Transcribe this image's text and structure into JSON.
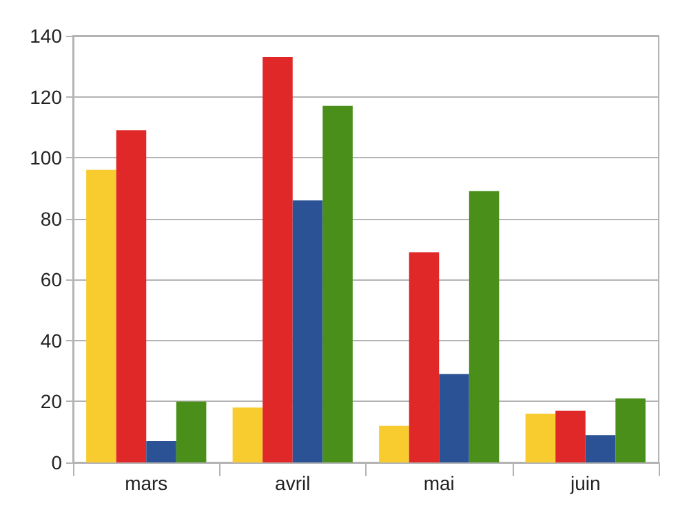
{
  "chart_data": {
    "type": "bar",
    "categories": [
      "mars",
      "avril",
      "mai",
      "juin"
    ],
    "series": [
      {
        "color": "#f8cb2e",
        "values": [
          96,
          18,
          12,
          16
        ]
      },
      {
        "color": "#e02828",
        "values": [
          109,
          133,
          69,
          17
        ]
      },
      {
        "color": "#2a5295",
        "values": [
          7,
          86,
          29,
          9
        ]
      },
      {
        "color": "#4a8f1a",
        "values": [
          20,
          117,
          89,
          21
        ]
      }
    ],
    "ylim": [
      0,
      140
    ],
    "yticks": [
      0,
      20,
      40,
      60,
      80,
      100,
      120,
      140
    ],
    "grid": "y"
  }
}
